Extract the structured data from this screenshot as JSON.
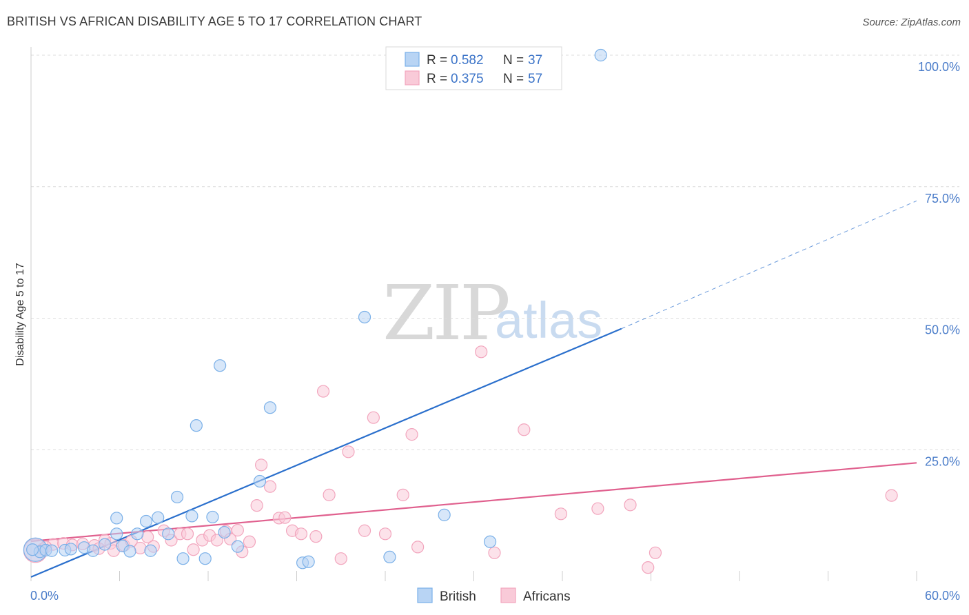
{
  "title": "BRITISH VS AFRICAN DISABILITY AGE 5 TO 17 CORRELATION CHART",
  "source": "Source: ZipAtlas.com",
  "watermark": {
    "zip": "ZIP",
    "atlas": "atlas"
  },
  "colors": {
    "british": "#7ab0e8",
    "british_fill": "#b8d4f4",
    "british_line": "#2a6fcc",
    "africans": "#f2a5bd",
    "africans_fill": "#f9cad8",
    "africans_line": "#e0608e",
    "grid": "#dcdcdc",
    "tick_text": "#4a7cc9"
  },
  "legend": {
    "british": {
      "r_label": "R = ",
      "r_value": "0.582",
      "n_label": "N = ",
      "n_value": "37"
    },
    "africans": {
      "r_label": "R = ",
      "r_value": "0.375",
      "n_label": "N = ",
      "n_value": "57"
    }
  },
  "bottom_legend": {
    "british": "British",
    "africans": "Africans"
  },
  "chart_data": {
    "type": "scatter",
    "title": "BRITISH VS AFRICAN DISABILITY AGE 5 TO 17 CORRELATION CHART",
    "xlabel": "",
    "ylabel": "Disability Age 5 to 17",
    "xlim": [
      0,
      60
    ],
    "ylim": [
      0,
      100
    ],
    "x_tick_labels": {
      "min": "0.0%",
      "max": "60.0%"
    },
    "y_ticks": [
      {
        "value": 25,
        "label": "25.0%"
      },
      {
        "value": 50,
        "label": "50.0%"
      },
      {
        "value": 75,
        "label": "75.0%"
      },
      {
        "value": 100,
        "label": "100.0%"
      }
    ],
    "series": [
      {
        "name": "British",
        "points": [
          [
            0.3,
            6.0,
            3
          ],
          [
            0.6,
            5.6,
            1
          ],
          [
            1.0,
            5.9,
            1
          ],
          [
            1.4,
            5.8,
            1
          ],
          [
            2.3,
            5.9,
            1
          ],
          [
            2.7,
            6.1,
            1
          ],
          [
            3.6,
            6.4,
            1
          ],
          [
            4.2,
            5.8,
            1
          ],
          [
            5.0,
            7.0,
            1
          ],
          [
            5.8,
            9.0,
            1
          ],
          [
            5.8,
            12.0,
            1
          ],
          [
            6.2,
            6.7,
            1
          ],
          [
            6.7,
            5.7,
            1
          ],
          [
            7.2,
            9.0,
            1
          ],
          [
            7.8,
            11.4,
            1
          ],
          [
            8.1,
            5.8,
            1
          ],
          [
            8.6,
            12.1,
            1
          ],
          [
            9.3,
            9.0,
            1
          ],
          [
            9.9,
            16.0,
            1
          ],
          [
            10.3,
            4.3,
            1
          ],
          [
            10.9,
            12.4,
            1
          ],
          [
            11.2,
            29.6,
            1
          ],
          [
            11.8,
            4.3,
            1
          ],
          [
            12.3,
            12.2,
            1
          ],
          [
            12.8,
            41.0,
            1
          ],
          [
            13.1,
            9.3,
            1
          ],
          [
            14.0,
            6.6,
            1
          ],
          [
            15.5,
            19.0,
            1
          ],
          [
            16.2,
            33.0,
            1
          ],
          [
            18.4,
            3.5,
            1
          ],
          [
            18.8,
            3.7,
            1
          ],
          [
            22.6,
            50.2,
            1
          ],
          [
            24.3,
            4.6,
            1
          ],
          [
            28.0,
            12.6,
            1
          ],
          [
            31.1,
            7.5,
            1
          ],
          [
            38.6,
            100.0,
            1
          ],
          [
            0.1,
            6.0,
            1
          ]
        ],
        "trend": {
          "x0": 0,
          "y0": 0.8,
          "x1": 40,
          "y1": 48.0,
          "dashed_to_x": 60,
          "dashed_to_y": 72.3
        }
      },
      {
        "name": "Africans",
        "points": [
          [
            0.3,
            5.8,
            3
          ],
          [
            0.8,
            6.1,
            1
          ],
          [
            1.5,
            7.0,
            1
          ],
          [
            2.2,
            7.2,
            1
          ],
          [
            2.8,
            6.9,
            1
          ],
          [
            3.5,
            7.1,
            1
          ],
          [
            4.3,
            6.8,
            1
          ],
          [
            5.0,
            7.8,
            1
          ],
          [
            5.4,
            7.2,
            1
          ],
          [
            5.6,
            5.8,
            1
          ],
          [
            6.3,
            6.8,
            1
          ],
          [
            6.8,
            7.6,
            1
          ],
          [
            7.4,
            6.3,
            1
          ],
          [
            7.9,
            8.4,
            1
          ],
          [
            8.3,
            6.6,
            1
          ],
          [
            9.0,
            9.6,
            1
          ],
          [
            9.5,
            7.8,
            1
          ],
          [
            10.1,
            9.0,
            1
          ],
          [
            10.6,
            9.0,
            1
          ],
          [
            11.0,
            6.0,
            1
          ],
          [
            11.6,
            7.8,
            1
          ],
          [
            12.1,
            8.7,
            1
          ],
          [
            12.6,
            7.8,
            1
          ],
          [
            13.2,
            9.5,
            1
          ],
          [
            13.5,
            8.0,
            1
          ],
          [
            14.0,
            9.7,
            1
          ],
          [
            14.3,
            5.6,
            1
          ],
          [
            14.8,
            7.5,
            1
          ],
          [
            15.3,
            14.4,
            1
          ],
          [
            15.6,
            22.1,
            1
          ],
          [
            16.2,
            18.0,
            1
          ],
          [
            16.8,
            12.0,
            1
          ],
          [
            17.2,
            12.1,
            1
          ],
          [
            17.7,
            9.6,
            1
          ],
          [
            18.3,
            9.0,
            1
          ],
          [
            19.3,
            8.5,
            1
          ],
          [
            19.8,
            36.1,
            1
          ],
          [
            20.2,
            16.4,
            1
          ],
          [
            21.0,
            4.3,
            1
          ],
          [
            21.5,
            24.6,
            1
          ],
          [
            22.6,
            9.6,
            1
          ],
          [
            23.2,
            31.1,
            1
          ],
          [
            24.0,
            9.0,
            1
          ],
          [
            25.2,
            16.4,
            1
          ],
          [
            25.8,
            27.9,
            1
          ],
          [
            26.2,
            6.5,
            1
          ],
          [
            30.5,
            43.6,
            1
          ],
          [
            31.4,
            5.4,
            1
          ],
          [
            33.4,
            28.8,
            1
          ],
          [
            35.9,
            12.8,
            1
          ],
          [
            38.4,
            13.8,
            1
          ],
          [
            40.6,
            14.5,
            1
          ],
          [
            41.8,
            2.6,
            1
          ],
          [
            42.3,
            5.4,
            1
          ],
          [
            58.3,
            16.3,
            1
          ],
          [
            1.0,
            6.5,
            1
          ],
          [
            4.6,
            6.2,
            1
          ]
        ],
        "trend": {
          "x0": 0,
          "y0": 7.6,
          "x1": 60,
          "y1": 22.5
        }
      }
    ]
  }
}
